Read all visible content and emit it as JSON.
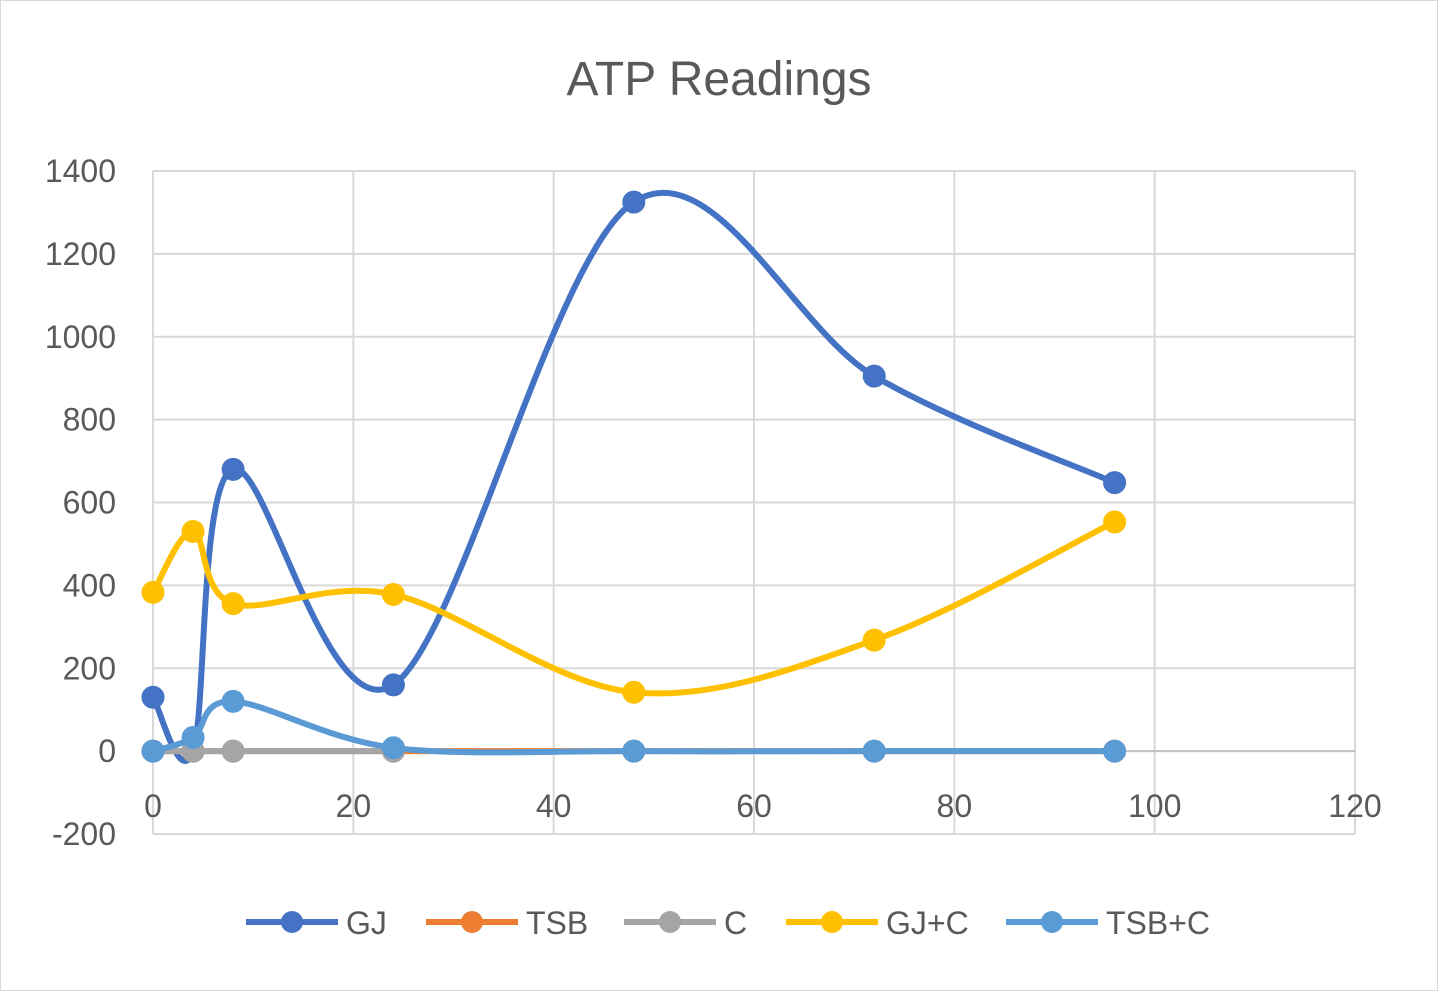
{
  "chart_data": {
    "type": "scatter",
    "subtype": "smooth-lines-with-markers",
    "title": "ATP Readings",
    "xlabel": "",
    "ylabel": "",
    "xlim": [
      0,
      120
    ],
    "ylim": [
      -200,
      1400
    ],
    "x_ticks": [
      0,
      20,
      40,
      60,
      80,
      100,
      120
    ],
    "y_ticks": [
      -200,
      0,
      200,
      400,
      600,
      800,
      1000,
      1200,
      1400
    ],
    "grid": true,
    "legend_position": "bottom",
    "x": [
      0,
      4,
      8,
      24,
      48,
      72,
      96
    ],
    "series": [
      {
        "name": "GJ",
        "color": "#4472C4",
        "values": [
          130,
          0,
          680,
          160,
          1325,
          905,
          648
        ]
      },
      {
        "name": "TSB",
        "color": "#ED7D31",
        "values": [
          0,
          0,
          0,
          0,
          0,
          0,
          0
        ]
      },
      {
        "name": "C",
        "color": "#A5A5A5",
        "values": [
          0,
          0,
          0,
          0,
          null,
          null,
          null
        ]
      },
      {
        "name": "GJ+C",
        "color": "#FFC000",
        "values": [
          383,
          530,
          356,
          378,
          142,
          268,
          553
        ]
      },
      {
        "name": "TSB+C",
        "color": "#5B9BD5",
        "values": [
          0,
          33,
          120,
          8,
          0,
          0,
          0
        ]
      }
    ]
  }
}
